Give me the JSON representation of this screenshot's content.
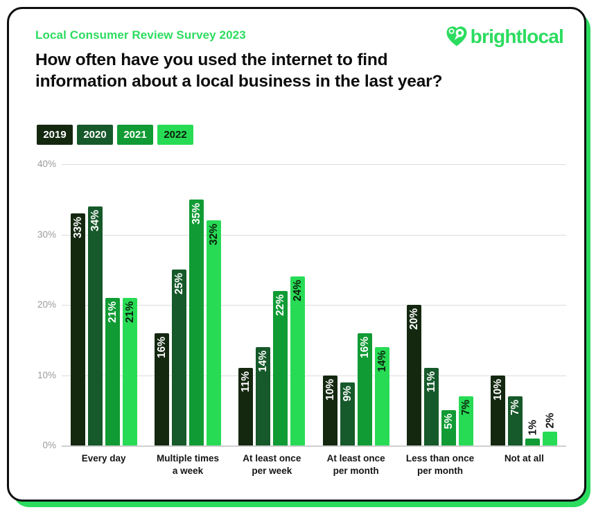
{
  "brand": {
    "survey_label": "Local Consumer Review Survey 2023",
    "logo_text": "brightlocal",
    "brand_green": "#2BDC5F"
  },
  "title": {
    "line1": "How often have you used the internet to find",
    "line2": "information about a local business in the last year?"
  },
  "legend": [
    {
      "label": "2019",
      "color": "#142810",
      "text_color": "#FFFFFF"
    },
    {
      "label": "2020",
      "color": "#16592A",
      "text_color": "#FFFFFF"
    },
    {
      "label": "2021",
      "color": "#109B34",
      "text_color": "#FFFFFF"
    },
    {
      "label": "2022",
      "color": "#28DB55",
      "text_color": "#0A1F0C"
    }
  ],
  "chart_data": {
    "type": "bar",
    "title": "How often have you used the internet to find information about a local business in the last year?",
    "categories": [
      "Every day",
      "Multiple times\na week",
      "At least once\nper week",
      "At least once\nper month",
      "Less than once\nper month",
      "Not at all"
    ],
    "series": [
      {
        "name": "2019",
        "color": "#142810",
        "label_color": "#FFFFFF",
        "values": [
          33,
          16,
          11,
          10,
          20,
          10
        ]
      },
      {
        "name": "2020",
        "color": "#16592A",
        "label_color": "#FFFFFF",
        "values": [
          34,
          25,
          14,
          9,
          11,
          7
        ]
      },
      {
        "name": "2021",
        "color": "#109B34",
        "label_color": "#FFFFFF",
        "values": [
          21,
          35,
          22,
          16,
          5,
          1
        ]
      },
      {
        "name": "2022",
        "color": "#28DB55",
        "label_color": "#0A1F0C",
        "values": [
          21,
          32,
          24,
          14,
          7,
          2
        ]
      }
    ],
    "value_suffix": "%",
    "ylim": [
      0,
      40
    ],
    "ytick_labels": [
      "40%",
      "30%",
      "20%",
      "10%",
      "0%"
    ],
    "grid": true,
    "legend_position": "top-left",
    "outside_label_color": "#101010",
    "grid_color": "#dcdcdc",
    "axis_label_color": "#9b9b9b"
  }
}
